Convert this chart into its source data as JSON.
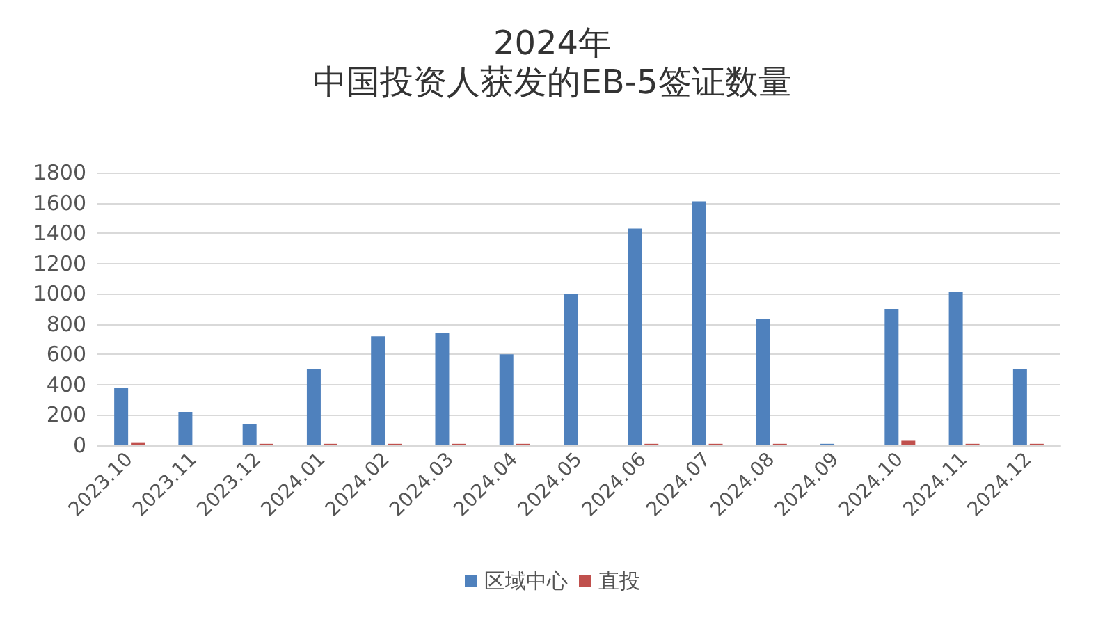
{
  "chart_data": {
    "type": "bar",
    "title": "2024年",
    "subtitle": "中国投资人获发的EB-5签证数量",
    "categories": [
      "2023.10",
      "2023.11",
      "2023.12",
      "2024.01",
      "2024.02",
      "2024.03",
      "2024.04",
      "2024.05",
      "2024.06",
      "2024.07",
      "2024.08",
      "2024.09",
      "2024.10",
      "2024.11",
      "2024.12"
    ],
    "series": [
      {
        "name": "区域中心",
        "color": "#4f81bd",
        "values": [
          380,
          220,
          140,
          500,
          720,
          740,
          600,
          1000,
          1430,
          1610,
          835,
          10,
          900,
          1010,
          500
        ]
      },
      {
        "name": "直投",
        "color": "#c0504d",
        "values": [
          20,
          0,
          10,
          10,
          10,
          10,
          10,
          0,
          10,
          10,
          10,
          0,
          30,
          10,
          10
        ]
      }
    ],
    "ylim": [
      0,
      1800
    ],
    "yticks": [
      0,
      200,
      400,
      600,
      800,
      1000,
      1200,
      1400,
      1600,
      1800
    ],
    "grid": "y",
    "legend": "bottom"
  }
}
